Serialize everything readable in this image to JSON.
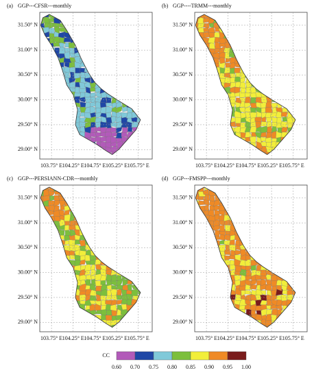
{
  "panels": [
    {
      "label": "(a)",
      "title": "GGP---CFSR---monthly"
    },
    {
      "label": "(b)",
      "title": "GGP----TRMM---monthly"
    },
    {
      "label": "(c)",
      "title": "GGP---PERSIANN-CDR---monthly"
    },
    {
      "label": "(d)",
      "title": "GGP---FMSPP---monthly"
    }
  ],
  "lat_range": [
    28.81,
    31.76
  ],
  "lon_range": [
    103.48,
    106.07
  ],
  "lat_ticks": [
    {
      "value": 31.5,
      "label": "31.50° N"
    },
    {
      "value": 31.0,
      "label": "31.00° N"
    },
    {
      "value": 30.5,
      "label": "30.50° N"
    },
    {
      "value": 30.0,
      "label": "30.00° N"
    },
    {
      "value": 29.5,
      "label": "29.50° N"
    },
    {
      "value": 29.0,
      "label": "29.00° N"
    }
  ],
  "lon_ticks": [
    {
      "value": 103.75,
      "label": "103.75° E"
    },
    {
      "value": 104.25,
      "label": "104.25° E"
    },
    {
      "value": 104.75,
      "label": "104.75° E"
    },
    {
      "value": 105.25,
      "label": "105.25° E"
    },
    {
      "value": 105.75,
      "label": "105.75° E"
    }
  ],
  "legend": {
    "title": "CC",
    "ticks": [
      {
        "value": 0.6,
        "label": "0.60"
      },
      {
        "value": 0.7,
        "label": "0.70"
      },
      {
        "value": 0.75,
        "label": "0.75"
      },
      {
        "value": 0.8,
        "label": "0.80"
      },
      {
        "value": 0.85,
        "label": "0.85"
      },
      {
        "value": 0.9,
        "label": "0.90"
      },
      {
        "value": 0.95,
        "label": "0.95"
      },
      {
        "value": 1.0,
        "label": "1.00"
      }
    ],
    "colors": [
      "#b25ab9",
      "#1f47a6",
      "#80c9d9",
      "#7cbf3c",
      "#f2ee3a",
      "#ef8a25",
      "#7a1c1c"
    ]
  }
}
